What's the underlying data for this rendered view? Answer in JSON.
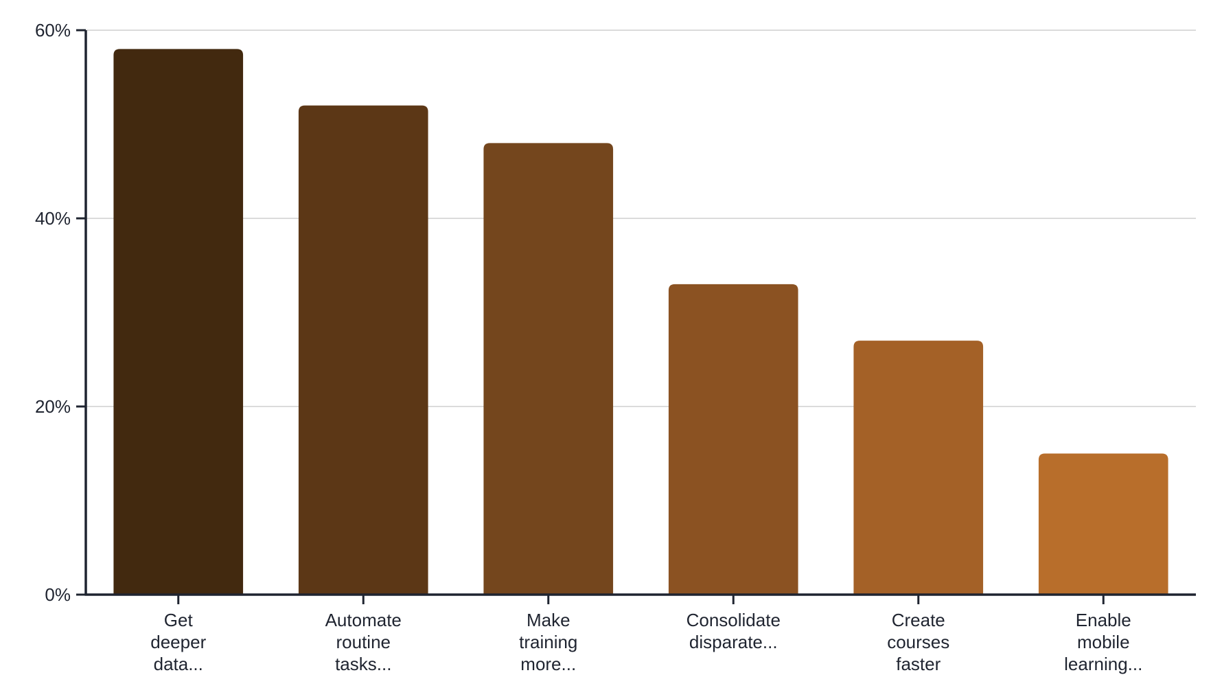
{
  "chart_data": {
    "type": "bar",
    "title": "",
    "xlabel": "",
    "ylabel": "",
    "ylim": [
      0,
      60
    ],
    "yticks": [
      "0%",
      "20%",
      "40%",
      "60%"
    ],
    "ytick_values": [
      0,
      20,
      40,
      60
    ],
    "grid": true,
    "categories": [
      [
        "Get",
        "deeper",
        "data..."
      ],
      [
        "Automate",
        "routine",
        "tasks..."
      ],
      [
        "Make",
        "training",
        "more..."
      ],
      [
        "Consolidate",
        "disparate..."
      ],
      [
        "Create",
        "courses",
        "faster"
      ],
      [
        "Enable",
        "mobile",
        "learning..."
      ]
    ],
    "values": [
      58,
      52,
      48,
      33,
      27,
      15
    ],
    "colors": [
      "#42290f",
      "#5c3716",
      "#74461d",
      "#8b5222",
      "#a46127",
      "#b86e2b"
    ],
    "axis_color": "#1f2430",
    "grid_color": "#cfcfcf"
  }
}
